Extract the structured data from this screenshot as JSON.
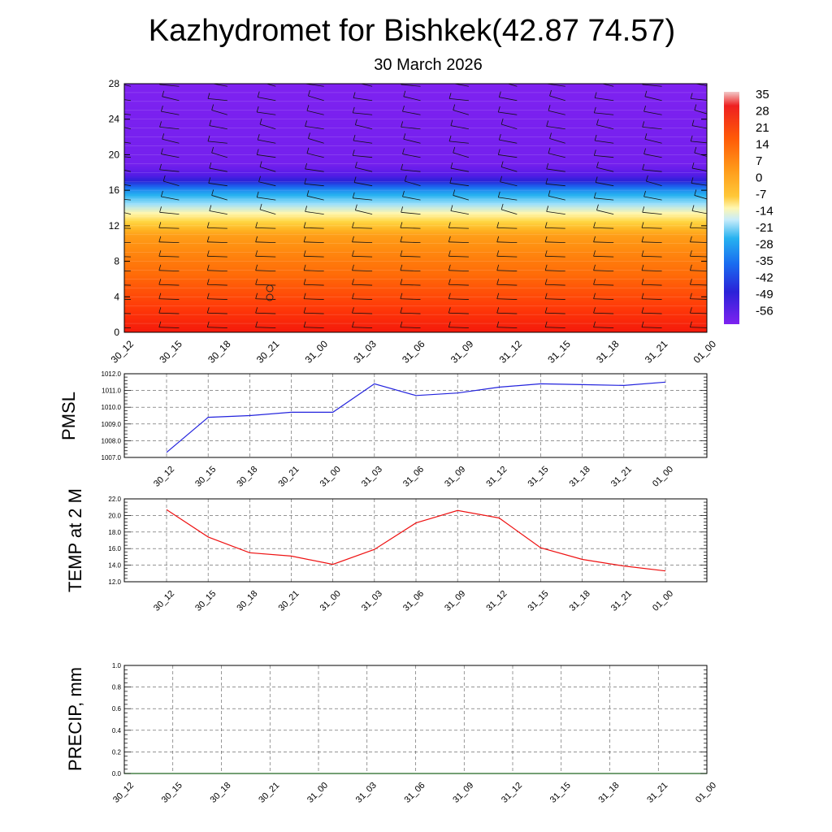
{
  "header": {
    "title": "Kazhydromet for Bishkek(42.87 74.57)",
    "subtitle": "30 March 2026"
  },
  "time_labels": [
    "30_12",
    "30_15",
    "30_18",
    "30_21",
    "31_00",
    "31_03",
    "31_06",
    "31_09",
    "31_12",
    "31_15",
    "31_18",
    "31_21",
    "01_00"
  ],
  "colors": {
    "pmsl_line": "#2222dd",
    "temp_line": "#ee1111",
    "precip_line": "#226622",
    "grid": "#555555",
    "palette": [
      "#7e22f0",
      "#5a1ce8",
      "#2a22d8",
      "#1a6cf0",
      "#27b2f0",
      "#9ee0fa",
      "#fff7b0",
      "#ffd440",
      "#ffb020",
      "#ff8c10",
      "#ff6a08",
      "#ff3a08",
      "#f00d0d"
    ]
  },
  "chart_data": [
    {
      "type": "heatmap",
      "name": "temperature-cross-section",
      "ylim": [
        0,
        28
      ],
      "yticks": [
        "0",
        "4",
        "8",
        "12",
        "16",
        "20",
        "24",
        "28"
      ],
      "x": [
        "30_12",
        "30_15",
        "30_18",
        "30_21",
        "31_00",
        "31_03",
        "31_06",
        "31_09",
        "31_12",
        "31_15",
        "31_18",
        "31_21",
        "01_00"
      ],
      "colorbar_labels": [
        "35",
        "28",
        "21",
        "14",
        "7",
        "0",
        "-7",
        "-14",
        "-21",
        "-28",
        "-35",
        "-42",
        "-49",
        "-56"
      ],
      "profile": [
        {
          "level": 0,
          "value": 28
        },
        {
          "level": 2,
          "value": 24
        },
        {
          "level": 5,
          "value": 18
        },
        {
          "level": 8,
          "value": 11
        },
        {
          "level": 11,
          "value": 3
        },
        {
          "level": 12.3,
          "value": -7
        },
        {
          "level": 14,
          "value": -20
        },
        {
          "level": 16,
          "value": -35
        },
        {
          "level": 17.7,
          "value": -53
        },
        {
          "level": 19,
          "value": -60
        },
        {
          "level": 28,
          "value": -62
        }
      ],
      "annotation": "open circles at 30_21, levels 4–5"
    },
    {
      "type": "line",
      "name": "pmsl",
      "ylabel": "PMSL",
      "ylim": [
        1007.0,
        1012.0
      ],
      "yticks": [
        "1007.0",
        "1008.0",
        "1009.0",
        "1010.0",
        "1011.0",
        "1012.0"
      ],
      "x": [
        "30_12",
        "30_15",
        "30_18",
        "30_21",
        "31_00",
        "31_03",
        "31_06",
        "31_09",
        "31_12",
        "31_15",
        "31_18",
        "31_21",
        "01_00"
      ],
      "values": [
        1007.3,
        1009.4,
        1009.5,
        1009.7,
        1009.7,
        1011.4,
        1010.7,
        1010.85,
        1011.2,
        1011.4,
        1011.35,
        1011.3,
        1011.5
      ]
    },
    {
      "type": "line",
      "name": "temp-2m",
      "ylabel": "TEMP at 2 M",
      "ylim": [
        12.0,
        22.0
      ],
      "yticks": [
        "12.0",
        "14.0",
        "16.0",
        "18.0",
        "20.0",
        "22.0"
      ],
      "x": [
        "30_12",
        "30_15",
        "30_18",
        "30_21",
        "31_00",
        "31_03",
        "31_06",
        "31_09",
        "31_12",
        "31_15",
        "31_18",
        "31_21",
        "01_00"
      ],
      "values": [
        20.7,
        17.4,
        15.5,
        15.1,
        14.1,
        15.9,
        19.1,
        20.6,
        19.7,
        16.1,
        14.7,
        13.9,
        13.3
      ]
    },
    {
      "type": "line",
      "name": "precip",
      "ylabel": "PRECIP, mm",
      "ylim": [
        0.0,
        1.0
      ],
      "yticks": [
        "0.0",
        "0.2",
        "0.4",
        "0.6",
        "0.8",
        "1.0"
      ],
      "x": [
        "30_12",
        "30_15",
        "30_18",
        "30_21",
        "31_00",
        "31_03",
        "31_06",
        "31_09",
        "31_12",
        "31_15",
        "31_18",
        "31_21",
        "01_00"
      ],
      "values": [
        0,
        0,
        0,
        0,
        0,
        0,
        0,
        0,
        0,
        0,
        0,
        0,
        0
      ]
    }
  ]
}
